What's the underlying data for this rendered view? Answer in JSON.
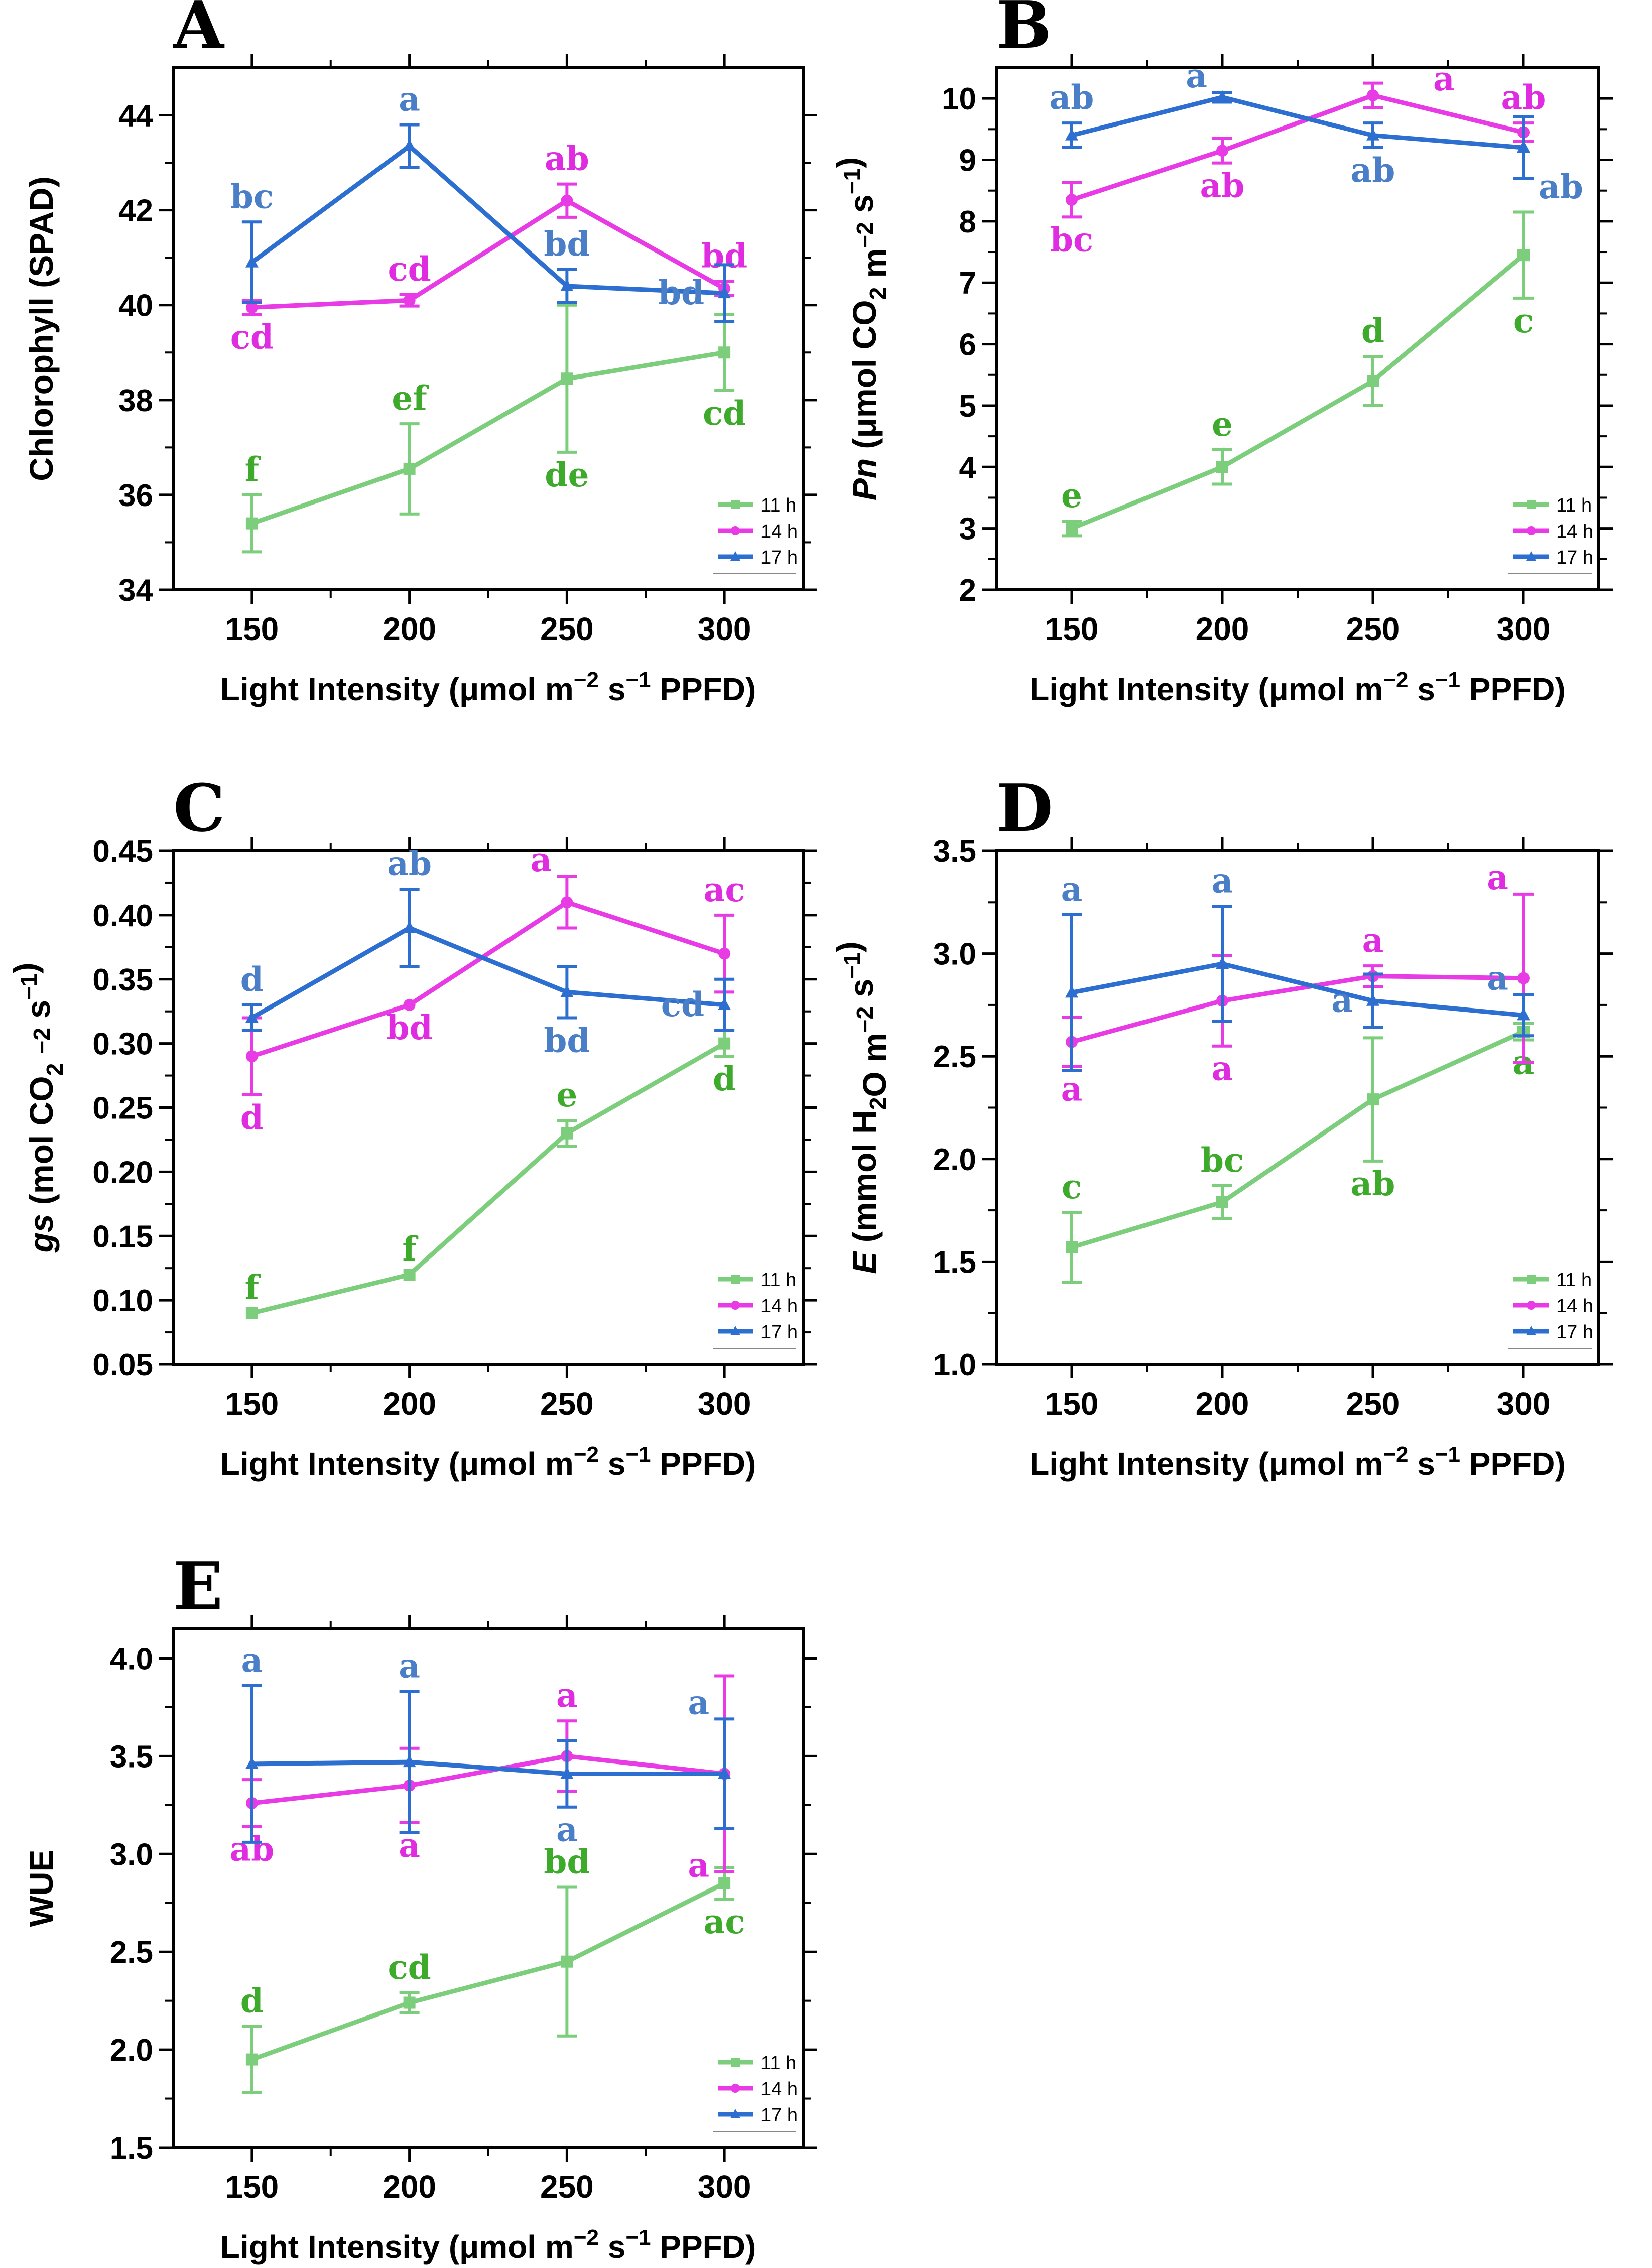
{
  "figure": {
    "x_label_parts": [
      "Light Intensity (μmol m",
      "−2",
      " s",
      "−1",
      " PPFD)"
    ],
    "colors": {
      "11 h": "#7ccd7c",
      "14 h": "#e83be6",
      "17 h": "#2d6fd0"
    },
    "sig_colors": {
      "11 h": "#3daa2c",
      "14 h": "#e02ce0",
      "17 h": "#4a7fc8"
    }
  },
  "chart_data": [
    {
      "panel": "A",
      "type": "line",
      "title": "",
      "xlabel": "Light Intensity (μmol m−2 s−1 PPFD)",
      "ylabel": "Chlorophyll (SPAD)",
      "ylabel_parts": [
        {
          "t": "Chlorophyll (SPAD)"
        }
      ],
      "x": [
        150,
        200,
        250,
        300
      ],
      "xlim": [
        125,
        325
      ],
      "ylim": [
        34,
        45
      ],
      "yticks": [
        34,
        36,
        38,
        40,
        42,
        44
      ],
      "legend": [
        "11 h",
        "14 h",
        "17 h"
      ],
      "series": [
        {
          "name": "11 h",
          "values": [
            35.4,
            36.55,
            38.45,
            39.0
          ],
          "err": [
            0.6,
            0.95,
            1.55,
            0.8
          ],
          "labels": [
            "f",
            "ef",
            "de",
            "cd"
          ],
          "label_pos": [
            "above",
            "above",
            "below",
            "below"
          ]
        },
        {
          "name": "14 h",
          "values": [
            39.95,
            40.1,
            42.2,
            40.35
          ],
          "err": [
            0.15,
            0.12,
            0.35,
            0.15
          ],
          "labels": [
            "cd",
            "cd",
            "ab",
            "bd"
          ],
          "label_pos": [
            "below",
            "above",
            "above",
            "above"
          ]
        },
        {
          "name": "17 h",
          "values": [
            40.9,
            43.35,
            40.4,
            40.25
          ],
          "err": [
            0.85,
            0.45,
            0.35,
            0.6
          ],
          "labels": [
            "bc",
            "a",
            "bd",
            "bd"
          ],
          "label_pos": [
            "above",
            "above",
            "above",
            "left"
          ]
        }
      ]
    },
    {
      "panel": "B",
      "type": "line",
      "title": "",
      "xlabel": "Light Intensity (μmol m−2 s−1 PPFD)",
      "ylabel": "Pn (μmol CO2 m−2 s−1)",
      "ylabel_parts": [
        {
          "t": "Pn",
          "i": true
        },
        {
          "t": " (μmol CO"
        },
        {
          "t": "2",
          "sub": true
        },
        {
          "t": " m"
        },
        {
          "t": "−2",
          "sup": true
        },
        {
          "t": " s"
        },
        {
          "t": "−1",
          "sup": true
        },
        {
          "t": ")"
        }
      ],
      "x": [
        150,
        200,
        250,
        300
      ],
      "xlim": [
        125,
        325
      ],
      "ylim": [
        2,
        10.5
      ],
      "yticks": [
        2,
        3,
        4,
        5,
        6,
        7,
        8,
        9,
        10
      ],
      "legend": [
        "11 h",
        "14 h",
        "17 h"
      ],
      "series": [
        {
          "name": "11 h",
          "values": [
            3.0,
            4.0,
            5.4,
            7.45
          ],
          "err": [
            0.12,
            0.28,
            0.4,
            0.7
          ],
          "labels": [
            "e",
            "e",
            "d",
            "c"
          ],
          "label_pos": [
            "above",
            "above",
            "above",
            "below"
          ]
        },
        {
          "name": "14 h",
          "values": [
            8.35,
            9.15,
            10.05,
            9.45
          ],
          "err": [
            0.28,
            0.2,
            0.2,
            0.15
          ],
          "labels": [
            "bc",
            "ab",
            "a",
            "ab"
          ],
          "label_pos": [
            "below",
            "below",
            "right",
            "above"
          ]
        },
        {
          "name": "17 h",
          "values": [
            9.4,
            10.02,
            9.4,
            9.2
          ],
          "err": [
            0.2,
            0.08,
            0.2,
            0.5
          ],
          "labels": [
            "ab",
            "a",
            "ab",
            "ab"
          ],
          "label_pos": [
            "above",
            "aboveleft",
            "below",
            "belowright"
          ]
        }
      ]
    },
    {
      "panel": "C",
      "type": "line",
      "title": "",
      "xlabel": "Light Intensity (μmol m−2 s−1 PPFD)",
      "ylabel": "gs (mol CO2 −2 s−1)",
      "ylabel_parts": [
        {
          "t": "gs",
          "i": true
        },
        {
          "t": " (mol CO"
        },
        {
          "t": "2",
          "sub": true
        },
        {
          "t": " "
        },
        {
          "t": "−2",
          "sup": true
        },
        {
          "t": " s"
        },
        {
          "t": "−1",
          "sup": true
        },
        {
          "t": ")"
        }
      ],
      "x": [
        150,
        200,
        250,
        300
      ],
      "xlim": [
        125,
        325
      ],
      "ylim": [
        0.05,
        0.45
      ],
      "yticks": [
        0.05,
        0.1,
        0.15,
        0.2,
        0.25,
        0.3,
        0.35,
        0.4,
        0.45
      ],
      "ytick_decimals": 2,
      "legend": [
        "11 h",
        "14 h",
        "17 h"
      ],
      "series": [
        {
          "name": "11 h",
          "values": [
            0.09,
            0.12,
            0.23,
            0.3
          ],
          "err": [
            0.0,
            0.0,
            0.01,
            0.01
          ],
          "labels": [
            "f",
            "f",
            "e",
            "d"
          ],
          "label_pos": [
            "above",
            "above",
            "above",
            "below"
          ]
        },
        {
          "name": "14 h",
          "values": [
            0.29,
            0.33,
            0.41,
            0.37
          ],
          "err": [
            0.03,
            0.0,
            0.02,
            0.03
          ],
          "labels": [
            "d",
            "bd",
            "a",
            "ac"
          ],
          "label_pos": [
            "below",
            "below",
            "aboveleft",
            "above"
          ]
        },
        {
          "name": "17 h",
          "values": [
            0.32,
            0.39,
            0.34,
            0.33
          ],
          "err": [
            0.01,
            0.03,
            0.02,
            0.02
          ],
          "labels": [
            "d",
            "ab",
            "bd",
            "cd"
          ],
          "label_pos": [
            "above",
            "above",
            "below",
            "left"
          ]
        }
      ]
    },
    {
      "panel": "D",
      "type": "line",
      "title": "",
      "xlabel": "Light Intensity (μmol m−2 s−1 PPFD)",
      "ylabel": "E (mmol H2O m−2 s−1)",
      "ylabel_parts": [
        {
          "t": "E",
          "i": true
        },
        {
          "t": " (mmol H"
        },
        {
          "t": "2",
          "sub": true
        },
        {
          "t": "O m"
        },
        {
          "t": "−2",
          "sup": true
        },
        {
          "t": " s"
        },
        {
          "t": "−1",
          "sup": true
        },
        {
          "t": ")"
        }
      ],
      "x": [
        150,
        200,
        250,
        300
      ],
      "xlim": [
        125,
        325
      ],
      "ylim": [
        1.0,
        3.5
      ],
      "yticks": [
        1.0,
        1.5,
        2.0,
        2.5,
        3.0,
        3.5
      ],
      "ytick_decimals": 1,
      "legend": [
        "11 h",
        "14 h",
        "17 h"
      ],
      "series": [
        {
          "name": "11 h",
          "values": [
            1.57,
            1.79,
            2.29,
            2.62
          ],
          "err": [
            0.17,
            0.08,
            0.3,
            0.04
          ],
          "labels": [
            "c",
            "bc",
            "ab",
            "a"
          ],
          "label_pos": [
            "above",
            "above",
            "below",
            "below"
          ]
        },
        {
          "name": "14 h",
          "values": [
            2.57,
            2.77,
            2.89,
            2.88
          ],
          "err": [
            0.12,
            0.22,
            0.05,
            0.41
          ],
          "labels": [
            "a",
            "a",
            "a",
            "a"
          ],
          "label_pos": [
            "below",
            "below",
            "above",
            "aboveleft"
          ]
        },
        {
          "name": "17 h",
          "values": [
            2.81,
            2.95,
            2.77,
            2.7
          ],
          "err": [
            0.38,
            0.28,
            0.13,
            0.1
          ],
          "labels": [
            "a",
            "a",
            "a",
            "a"
          ],
          "label_pos": [
            "above",
            "above",
            "left",
            "aboveleft"
          ]
        }
      ]
    },
    {
      "panel": "E",
      "type": "line",
      "title": "",
      "xlabel": "Light Intensity (μmol m−2 s−1 PPFD)",
      "ylabel": "WUE",
      "ylabel_parts": [
        {
          "t": "WUE"
        }
      ],
      "x": [
        150,
        200,
        250,
        300
      ],
      "xlim": [
        125,
        325
      ],
      "ylim": [
        1.5,
        4.15
      ],
      "yticks": [
        1.5,
        2.0,
        2.5,
        3.0,
        3.5,
        4.0
      ],
      "ytick_decimals": 1,
      "legend": [
        "11 h",
        "14 h",
        "17 h"
      ],
      "series": [
        {
          "name": "11 h",
          "values": [
            1.95,
            2.24,
            2.45,
            2.85
          ],
          "err": [
            0.17,
            0.05,
            0.38,
            0.08
          ],
          "labels": [
            "d",
            "cd",
            "bd",
            "ac"
          ],
          "label_pos": [
            "above",
            "above",
            "above",
            "below"
          ]
        },
        {
          "name": "14 h",
          "values": [
            3.26,
            3.35,
            3.5,
            3.41
          ],
          "err": [
            0.12,
            0.19,
            0.18,
            0.5
          ],
          "labels": [
            "ab",
            "a",
            "a",
            "a"
          ],
          "label_pos": [
            "below",
            "below",
            "above",
            "belowleft"
          ]
        },
        {
          "name": "17 h",
          "values": [
            3.46,
            3.47,
            3.41,
            3.41
          ],
          "err": [
            0.4,
            0.36,
            0.17,
            0.28
          ],
          "labels": [
            "a",
            "a",
            "a",
            "a"
          ],
          "label_pos": [
            "above",
            "above",
            "below",
            "aboveleft"
          ]
        }
      ]
    }
  ]
}
